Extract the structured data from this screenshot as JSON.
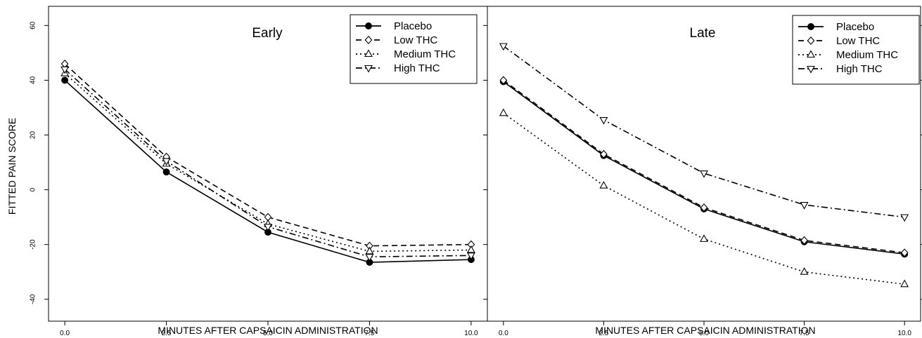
{
  "ylabel": "FITTED PAIN SCORE",
  "chart_data": [
    {
      "type": "line",
      "title": "Early",
      "xlabel": "MINUTES AFTER CAPSAICIN ADMINISTRATION",
      "ylabel": "FITTED PAIN SCORE",
      "x": [
        0.0,
        2.5,
        5.0,
        7.5,
        10.0
      ],
      "x_tick_labels": [
        "0.0",
        "2.5",
        "5.0",
        "7.5",
        "10.0"
      ],
      "y_ticks": [
        -40,
        -20,
        0,
        20,
        40,
        60
      ],
      "xlim": [
        -0.4,
        10.4
      ],
      "ylim": [
        -48,
        67
      ],
      "grid": false,
      "legend_position": "top-right",
      "series": [
        {
          "name": "Placebo",
          "values": [
            40,
            6.5,
            -15.5,
            -26.5,
            -25.5
          ]
        },
        {
          "name": "Low THC",
          "values": [
            46,
            12,
            -10,
            -20.5,
            -20
          ]
        },
        {
          "name": "Medium THC",
          "values": [
            42.5,
            9.5,
            -12.5,
            -22.5,
            -22
          ]
        },
        {
          "name": "High THC",
          "values": [
            44,
            10.5,
            -13.5,
            -24.5,
            -24
          ]
        }
      ]
    },
    {
      "type": "line",
      "title": "Late",
      "xlabel": "MINUTES AFTER CAPSAICIN ADMINISTRATION",
      "ylabel": "FITTED PAIN SCORE",
      "x": [
        0.0,
        2.5,
        5.0,
        7.5,
        10.0
      ],
      "x_tick_labels": [
        "0.0",
        "2.5",
        "5.0",
        "7.5",
        "10.0"
      ],
      "y_ticks": [
        -40,
        -20,
        0,
        20,
        40,
        60
      ],
      "xlim": [
        -0.4,
        10.4
      ],
      "ylim": [
        -48,
        67
      ],
      "grid": false,
      "legend_position": "top-right",
      "series": [
        {
          "name": "Placebo",
          "values": [
            39.5,
            12.5,
            -7,
            -19,
            -23.5
          ]
        },
        {
          "name": "Low THC",
          "values": [
            40,
            13,
            -6.5,
            -18.5,
            -23
          ]
        },
        {
          "name": "Medium THC",
          "values": [
            28,
            1.5,
            -18,
            -30,
            -34.5
          ]
        },
        {
          "name": "High THC",
          "values": [
            52.5,
            25.5,
            6,
            -5.5,
            -10
          ]
        }
      ]
    }
  ],
  "series_styles": [
    {
      "name": "Placebo",
      "marker": "filled-circle",
      "dash": "none",
      "color": "#000000"
    },
    {
      "name": "Low THC",
      "marker": "open-diamond",
      "dash": "dashed",
      "color": "#000000"
    },
    {
      "name": "Medium THC",
      "marker": "open-triangle-up",
      "dash": "dotted",
      "color": "#000000"
    },
    {
      "name": "High THC",
      "marker": "open-triangle-down",
      "dash": "dot-dash",
      "color": "#000000"
    }
  ]
}
